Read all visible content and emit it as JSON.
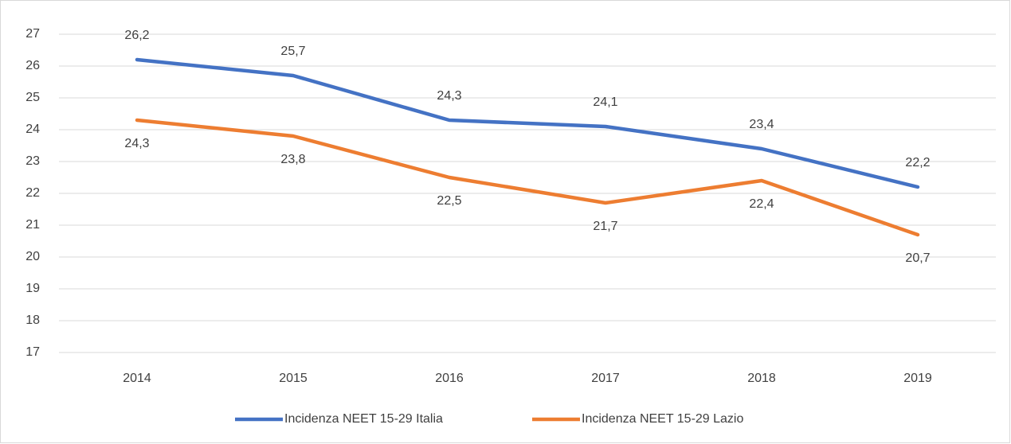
{
  "chart_data": {
    "type": "line",
    "categories": [
      "2014",
      "2015",
      "2016",
      "2017",
      "2018",
      "2019"
    ],
    "series": [
      {
        "name": "Incidenza NEET 15-29 Italia",
        "color": "#4472c4",
        "values": [
          26.2,
          25.7,
          24.3,
          24.1,
          23.4,
          22.2
        ],
        "value_labels": [
          "26,2",
          "25,7",
          "24,3",
          "24,1",
          "23,4",
          "22,2"
        ]
      },
      {
        "name": "Incidenza NEET 15-29 Lazio",
        "color": "#ed7d31",
        "values": [
          24.3,
          23.8,
          22.5,
          21.7,
          22.4,
          20.7
        ],
        "value_labels": [
          "24,3",
          "23,8",
          "22,5",
          "21,7",
          "22,4",
          "20,7"
        ]
      }
    ],
    "ylim": [
      17,
      27
    ],
    "yticks": [
      17,
      18,
      19,
      20,
      21,
      22,
      23,
      24,
      25,
      26,
      27
    ],
    "grid": true,
    "legend": "bottom"
  }
}
